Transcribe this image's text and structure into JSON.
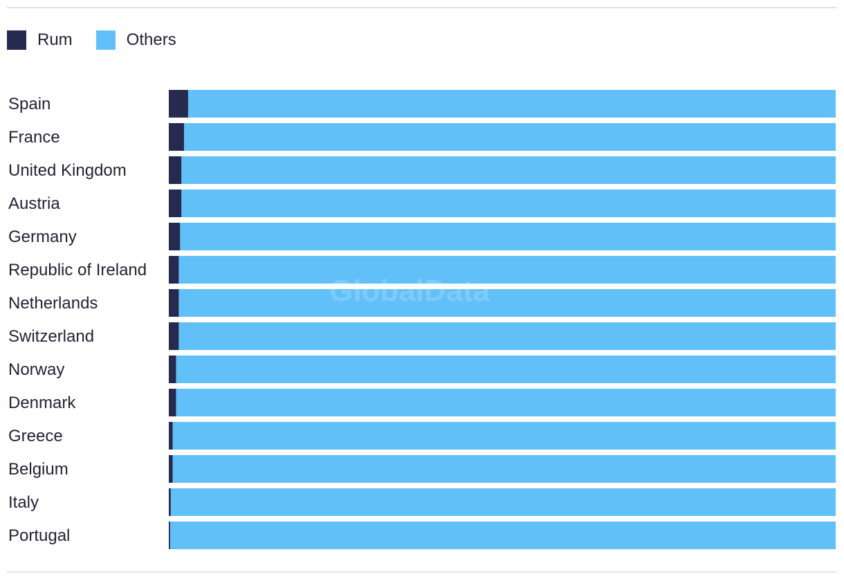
{
  "legend": {
    "items": [
      {
        "label": "Rum",
        "color": "#262a4f"
      },
      {
        "label": "Others",
        "color": "#62c0f8"
      }
    ]
  },
  "watermark": "GlobalData",
  "chart_data": {
    "type": "bar",
    "orientation": "horizontal",
    "stacked": true,
    "percent_stacked": true,
    "categories": [
      "Spain",
      "France",
      "United Kingdom",
      "Austria",
      "Germany",
      "Republic of Ireland",
      "Netherlands",
      "Switzerland",
      "Norway",
      "Denmark",
      "Greece",
      "Belgium",
      "Italy",
      "Portugal"
    ],
    "series": [
      {
        "name": "Rum",
        "color": "#262a4f",
        "values": [
          2.9,
          2.3,
          1.9,
          1.9,
          1.7,
          1.5,
          1.5,
          1.5,
          1.1,
          1.1,
          0.6,
          0.6,
          0.3,
          0.2
        ]
      },
      {
        "name": "Others",
        "color": "#62c0f8",
        "values": [
          97.1,
          97.7,
          98.1,
          98.1,
          98.3,
          98.5,
          98.5,
          98.5,
          98.9,
          98.9,
          99.4,
          99.4,
          99.7,
          99.8
        ]
      }
    ],
    "xlim": [
      0,
      100
    ],
    "grid": false,
    "legend_position": "top-left"
  }
}
